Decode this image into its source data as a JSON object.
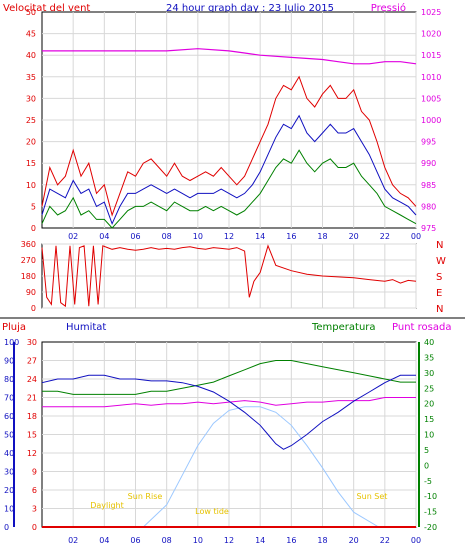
{
  "header": {
    "left_title": "Velocitat del vent",
    "center_title": "24 hour graph day : 23 Julio 2015",
    "right_title": "Pressió"
  },
  "colors": {
    "red": "#e00000",
    "blue": "#1010c0",
    "green": "#008000",
    "magenta": "#e000e0",
    "lightblue": "#9cc8ff",
    "yellow": "#e6c200",
    "grid": "#d8d8d8"
  },
  "bottom_labels": {
    "pluja": "Pluja",
    "humitat": "Humitat",
    "temperatura": "Temperatura",
    "punt_rosada": "Punt rosada"
  },
  "compass": [
    "N",
    "W",
    "S",
    "E",
    "N"
  ],
  "sun_labels": [
    "Daylight",
    "Sun Rise",
    "Low tide",
    "Sun Set"
  ],
  "chart_data": [
    {
      "type": "line",
      "name": "wind_pressure",
      "x_ticks": [
        "02",
        "04",
        "06",
        "08",
        "10",
        "12",
        "14",
        "16",
        "18",
        "20",
        "22",
        "00"
      ],
      "y_left_ticks": [
        "0",
        "5",
        "10",
        "15",
        "20",
        "25",
        "30",
        "35",
        "40",
        "45",
        "50"
      ],
      "y_right_ticks": [
        "975",
        "980",
        "985",
        "990",
        "995",
        "1000",
        "1005",
        "1010",
        "1015",
        "1020",
        "1025"
      ],
      "ylim_left": [
        0,
        50
      ],
      "ylim_right": [
        975,
        1025
      ],
      "grid": true,
      "series": [
        {
          "key": "gust",
          "color": "#e00000",
          "x": [
            0,
            0.5,
            1,
            1.5,
            2,
            2.5,
            3,
            3.5,
            4,
            4.5,
            5,
            5.5,
            6,
            6.5,
            7,
            7.5,
            8,
            8.5,
            9,
            9.5,
            10,
            10.5,
            11,
            11.5,
            12,
            12.5,
            13,
            13.5,
            14,
            14.5,
            15,
            15.5,
            16,
            16.5,
            17,
            17.5,
            18,
            18.5,
            19,
            19.5,
            20,
            20.5,
            21,
            21.5,
            22,
            22.5,
            23,
            23.5,
            24
          ],
          "values": [
            5,
            14,
            10,
            12,
            18,
            12,
            15,
            8,
            10,
            3,
            8,
            13,
            12,
            15,
            16,
            14,
            12,
            15,
            12,
            11,
            12,
            13,
            12,
            14,
            12,
            10,
            12,
            16,
            20,
            24,
            30,
            33,
            32,
            35,
            30,
            28,
            31,
            33,
            30,
            30,
            32,
            27,
            25,
            20,
            14,
            10,
            8,
            7,
            5
          ]
        },
        {
          "key": "average",
          "color": "#1010c0",
          "x": [
            0,
            0.5,
            1,
            1.5,
            2,
            2.5,
            3,
            3.5,
            4,
            4.5,
            5,
            5.5,
            6,
            6.5,
            7,
            7.5,
            8,
            8.5,
            9,
            9.5,
            10,
            10.5,
            11,
            11.5,
            12,
            12.5,
            13,
            13.5,
            14,
            14.5,
            15,
            15.5,
            16,
            16.5,
            17,
            17.5,
            18,
            18.5,
            19,
            19.5,
            20,
            20.5,
            21,
            21.5,
            22,
            22.5,
            23,
            23.5,
            24
          ],
          "values": [
            3,
            9,
            8,
            7,
            11,
            8,
            9,
            5,
            6,
            1,
            5,
            8,
            8,
            9,
            10,
            9,
            8,
            9,
            8,
            7,
            8,
            8,
            8,
            9,
            8,
            7,
            8,
            10,
            13,
            17,
            21,
            24,
            23,
            26,
            22,
            20,
            22,
            24,
            22,
            22,
            23,
            20,
            17,
            13,
            9,
            7,
            6,
            5,
            3
          ]
        },
        {
          "key": "minimum",
          "color": "#008000",
          "x": [
            0,
            0.5,
            1,
            1.5,
            2,
            2.5,
            3,
            3.5,
            4,
            4.5,
            5,
            5.5,
            6,
            6.5,
            7,
            7.5,
            8,
            8.5,
            9,
            9.5,
            10,
            10.5,
            11,
            11.5,
            12,
            12.5,
            13,
            13.5,
            14,
            14.5,
            15,
            15.5,
            16,
            16.5,
            17,
            17.5,
            18,
            18.5,
            19,
            19.5,
            20,
            20.5,
            21,
            21.5,
            22,
            22.5,
            23,
            23.5,
            24
          ],
          "values": [
            1,
            5,
            3,
            4,
            7,
            3,
            4,
            2,
            2,
            0,
            2,
            4,
            5,
            5,
            6,
            5,
            4,
            6,
            5,
            4,
            4,
            5,
            4,
            5,
            4,
            3,
            4,
            6,
            8,
            11,
            14,
            16,
            15,
            18,
            15,
            13,
            15,
            16,
            14,
            14,
            15,
            12,
            10,
            8,
            5,
            4,
            3,
            2,
            1
          ]
        },
        {
          "key": "pressure",
          "color": "#e000e0",
          "axis": "right",
          "x": [
            0,
            2,
            4,
            6,
            8,
            10,
            12,
            13,
            14,
            16,
            18,
            19,
            20,
            21,
            22,
            23,
            24
          ],
          "values": [
            1016,
            1016,
            1016,
            1016,
            1016,
            1016.5,
            1016,
            1015.5,
            1015,
            1014.5,
            1014,
            1013.5,
            1013,
            1013,
            1013.5,
            1013.5,
            1013
          ]
        }
      ]
    },
    {
      "type": "scatter",
      "name": "wind_direction",
      "y_ticks": [
        "0",
        "90",
        "180",
        "270",
        "360"
      ],
      "ylim": [
        0,
        360
      ],
      "series": [
        {
          "key": "direction",
          "color": "#e00000",
          "x": [
            0,
            0.3,
            0.6,
            0.9,
            1.2,
            1.5,
            1.8,
            2.1,
            2.4,
            2.7,
            3,
            3.3,
            3.6,
            3.9,
            4.2,
            4.5,
            5,
            5.5,
            6,
            6.5,
            7,
            7.5,
            8,
            8.5,
            9,
            9.5,
            10,
            10.5,
            11,
            11.5,
            12,
            12.5,
            13,
            13.3,
            13.6,
            14,
            14.5,
            15,
            16,
            17,
            18,
            19,
            20,
            21,
            22,
            22.5,
            23,
            23.5,
            24
          ],
          "values": [
            340,
            60,
            20,
            350,
            30,
            10,
            350,
            20,
            340,
            350,
            10,
            350,
            20,
            350,
            340,
            330,
            340,
            330,
            325,
            330,
            340,
            330,
            335,
            330,
            340,
            345,
            335,
            330,
            340,
            335,
            330,
            340,
            320,
            60,
            150,
            200,
            350,
            240,
            210,
            190,
            180,
            175,
            170,
            160,
            150,
            160,
            140,
            155,
            150
          ]
        }
      ]
    },
    {
      "type": "line",
      "name": "rain_humidity_temperature",
      "y_left_ticks": [
        "0",
        "10",
        "20",
        "30",
        "40",
        "50",
        "60",
        "70",
        "80",
        "90",
        "100"
      ],
      "y_rain_ticks": [
        "0",
        "3",
        "6",
        "9",
        "12",
        "15",
        "18",
        "21",
        "24",
        "27",
        "30"
      ],
      "y_right_ticks": [
        "-20",
        "-15",
        "-10",
        "-5",
        "0",
        "5",
        "10",
        "15",
        "20",
        "25",
        "30",
        "35",
        "40"
      ],
      "ylim_humidity": [
        0,
        100
      ],
      "ylim_temperature": [
        -20,
        40
      ],
      "series": [
        {
          "key": "humidity",
          "color": "#1010c0",
          "axis": "humidity",
          "x": [
            0,
            1,
            2,
            3,
            4,
            5,
            6,
            7,
            8,
            9,
            10,
            11,
            12,
            13,
            14,
            14.5,
            15,
            15.5,
            16,
            17,
            18,
            19,
            20,
            21,
            22,
            23,
            24
          ],
          "values": [
            78,
            80,
            80,
            82,
            82,
            80,
            80,
            79,
            79,
            78,
            76,
            73,
            68,
            62,
            55,
            50,
            45,
            42,
            44,
            50,
            57,
            62,
            68,
            73,
            78,
            82,
            82
          ]
        },
        {
          "key": "temperature",
          "color": "#008000",
          "axis": "temperature",
          "x": [
            0,
            1,
            2,
            3,
            4,
            5,
            6,
            7,
            8,
            9,
            10,
            11,
            12,
            13,
            14,
            15,
            16,
            17,
            18,
            19,
            20,
            21,
            22,
            23,
            24
          ],
          "values": [
            24,
            24,
            23,
            23,
            23,
            23,
            23,
            24,
            24,
            25,
            26,
            27,
            29,
            31,
            33,
            34,
            34,
            33,
            32,
            31,
            30,
            29,
            28,
            27,
            27
          ]
        },
        {
          "key": "dew_point",
          "color": "#e000e0",
          "axis": "temperature",
          "x": [
            0,
            1,
            2,
            3,
            4,
            5,
            6,
            7,
            8,
            9,
            10,
            11,
            12,
            13,
            14,
            15,
            16,
            17,
            18,
            19,
            20,
            21,
            22,
            23,
            24
          ],
          "values": [
            19,
            19,
            19,
            19,
            19,
            19.5,
            20,
            19.5,
            20,
            20,
            20.5,
            20,
            20.5,
            21,
            20.5,
            19.5,
            20,
            20.5,
            20.5,
            21,
            21,
            21,
            22,
            22,
            22
          ]
        },
        {
          "key": "solar",
          "color": "#9cc8ff",
          "axis": "humidity",
          "x": [
            6.5,
            8,
            9,
            10,
            11,
            12,
            13,
            14,
            15,
            16,
            17,
            18,
            19,
            20,
            21.6
          ],
          "values": [
            0,
            12,
            28,
            44,
            56,
            63,
            65,
            65,
            62,
            55,
            44,
            32,
            19,
            8,
            0
          ]
        },
        {
          "key": "rain",
          "color": "#e00000",
          "axis": "rain",
          "x": [
            0,
            24
          ],
          "values": [
            0,
            0
          ]
        }
      ]
    }
  ]
}
